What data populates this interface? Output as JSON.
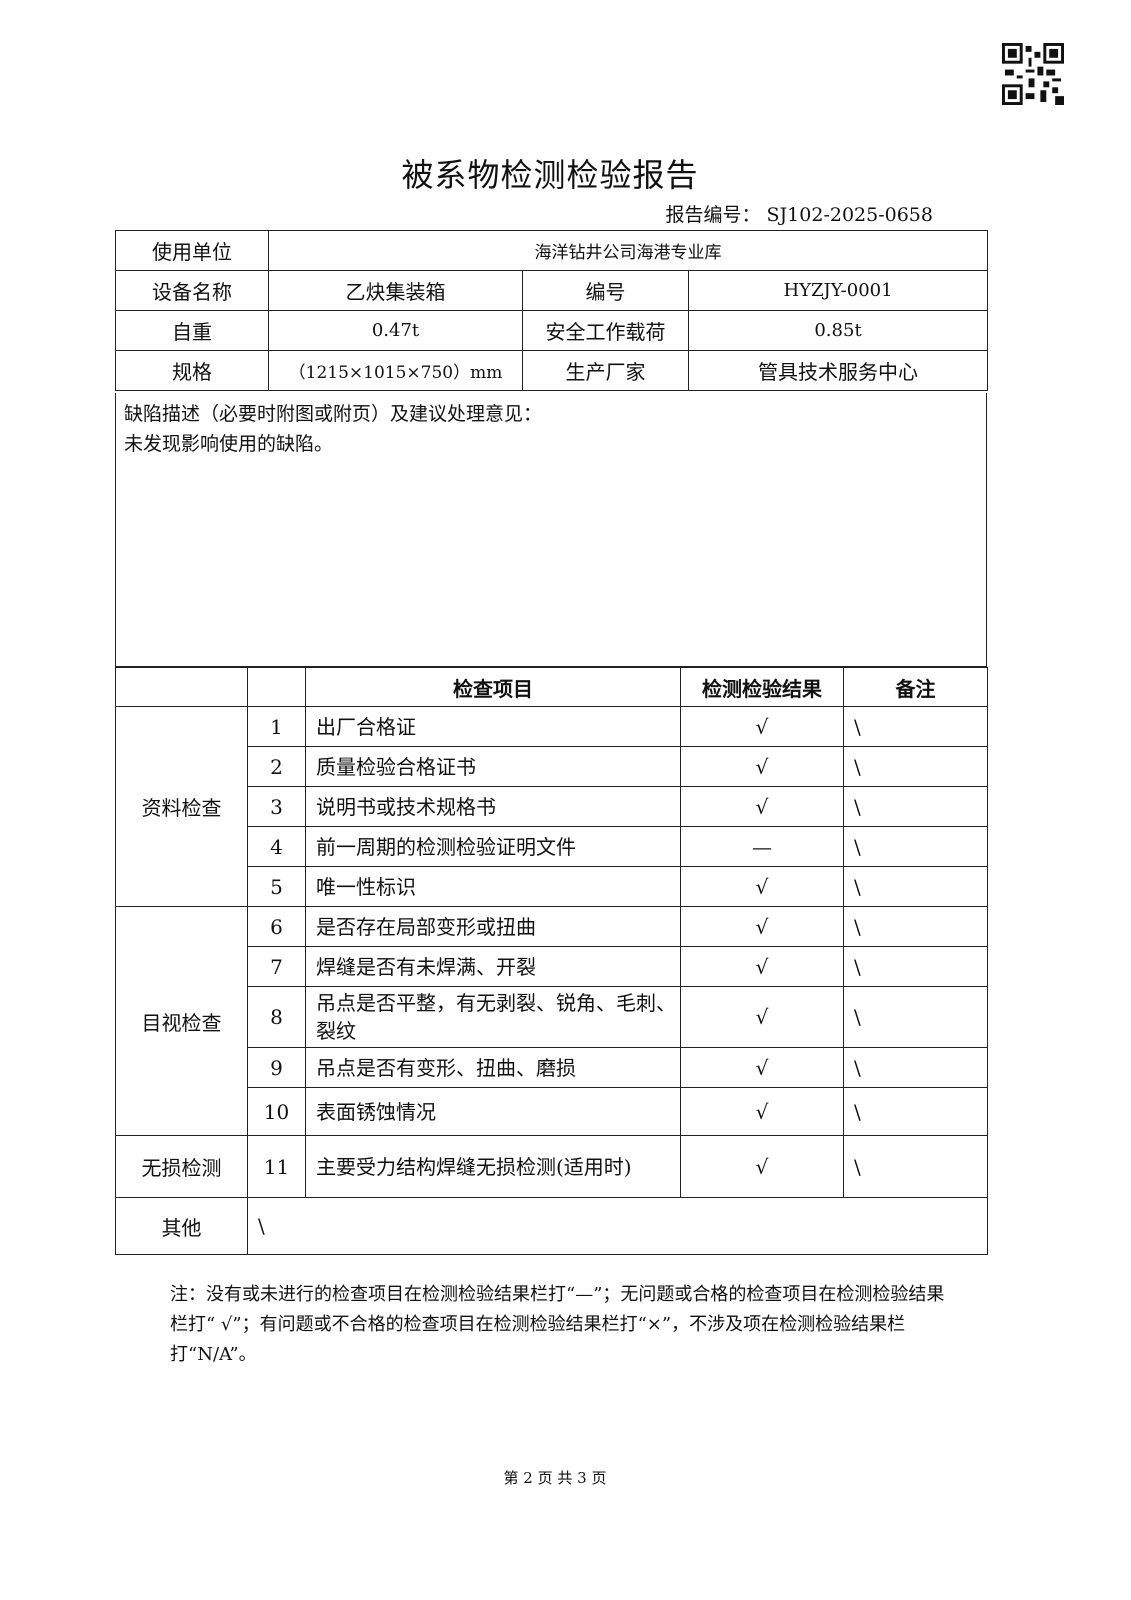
{
  "title": "被系物检测检验报告",
  "report_number": "报告编号： SJ102-2025-0658",
  "info": {
    "user_unit_label": "使用单位",
    "user_unit": "海洋钻井公司海港专业库",
    "equipment_name_label": "设备名称",
    "equipment_name": "乙炔集装箱",
    "number_label": "编号",
    "number": "HYZJY-0001",
    "self_weight_label": "自重",
    "self_weight": "0.47t",
    "swl_label": "安全工作载荷",
    "swl": "0.85t",
    "spec_label": "规格",
    "spec": "（1215×1015×750）mm",
    "manufacturer_label": "生产厂家",
    "manufacturer": "管具技术服务中心"
  },
  "defect": {
    "label": "缺陷描述（必要时附图或附页）及建议处理意见：",
    "text": "未发现影响使用的缺陷。"
  },
  "checks": {
    "headers": {
      "item": "检查项目",
      "result": "检测检验结果",
      "remark": "备注"
    },
    "groups": [
      {
        "name": "资料检查",
        "rows": [
          {
            "no": "1",
            "item": "出厂合格证",
            "result": "√",
            "remark": "\\"
          },
          {
            "no": "2",
            "item": "质量检验合格证书",
            "result": "√",
            "remark": "\\"
          },
          {
            "no": "3",
            "item": "说明书或技术规格书",
            "result": "√",
            "remark": "\\"
          },
          {
            "no": "4",
            "item": "前一周期的检测检验证明文件",
            "result": "—",
            "remark": "\\"
          },
          {
            "no": "5",
            "item": "唯一性标识",
            "result": "√",
            "remark": "\\"
          }
        ]
      },
      {
        "name": "目视检查",
        "rows": [
          {
            "no": "6",
            "item": "是否存在局部变形或扭曲",
            "result": "√",
            "remark": "\\"
          },
          {
            "no": "7",
            "item": "焊缝是否有未焊满、开裂",
            "result": "√",
            "remark": "\\"
          },
          {
            "no": "8",
            "item": "吊点是否平整，有无剥裂、锐角、毛刺、裂纹",
            "result": "√",
            "remark": "\\"
          },
          {
            "no": "9",
            "item": "吊点是否有变形、扭曲、磨损",
            "result": "√",
            "remark": "\\"
          },
          {
            "no": "10",
            "item": "表面锈蚀情况",
            "result": "√",
            "remark": "\\"
          }
        ]
      },
      {
        "name": "无损检测",
        "rows": [
          {
            "no": "11",
            "item": "主要受力结构焊缝无损检测(适用时)",
            "result": "√",
            "remark": "\\"
          }
        ]
      }
    ],
    "other_label": "其他",
    "other_value": "\\"
  },
  "note": "注：没有或未进行的检查项目在检测检验结果栏打“—”；无问题或合格的检查项目在检测检验结果栏打“ √”；有问题或不合格的检查项目在检测检验结果栏打“×”，不涉及项在检测检验结果栏打“N/A”。",
  "footer": "第 2 页 共 3 页",
  "icons": {
    "qr": "qr-code-icon"
  }
}
